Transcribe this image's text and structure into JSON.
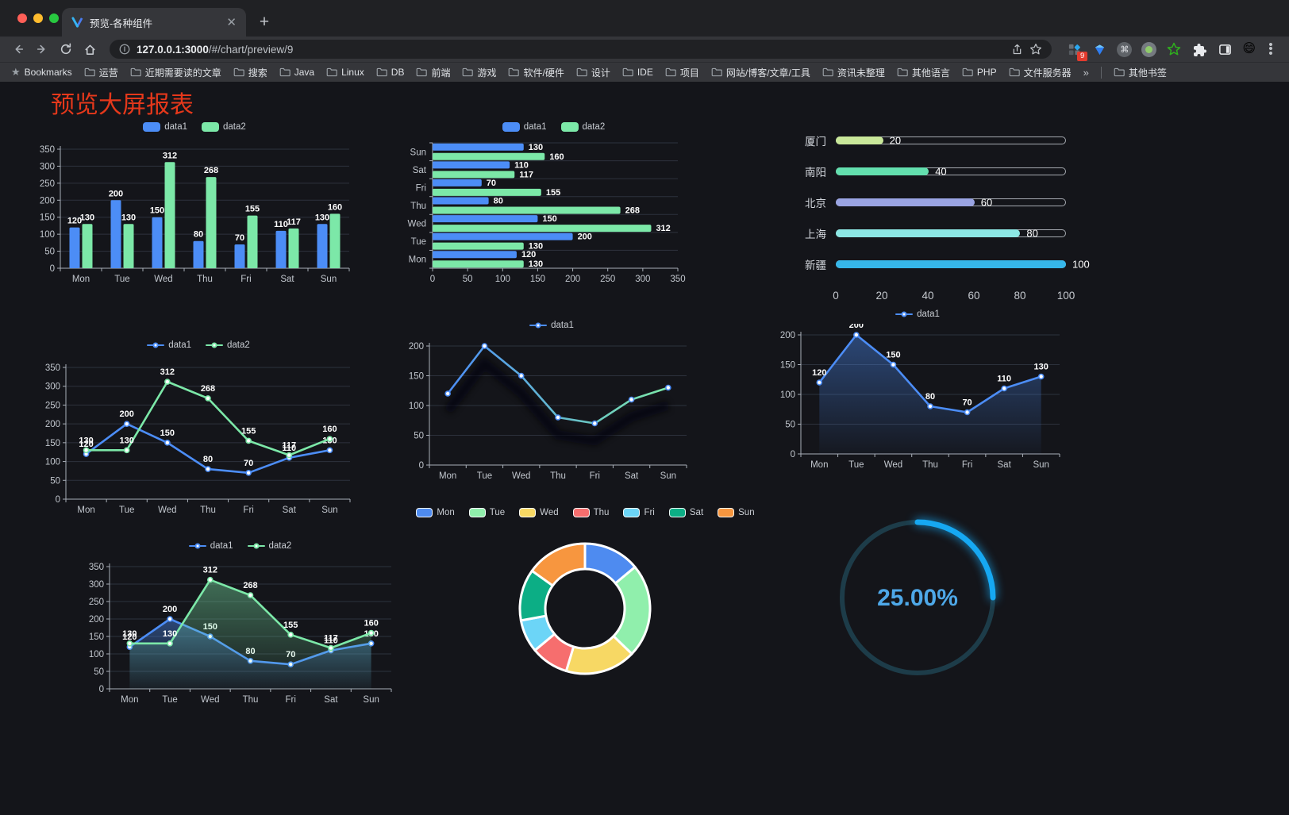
{
  "browser": {
    "tab_title": "预览-各种组件",
    "url_host": "127.0.0.1:3000",
    "url_path": "/#/chart/preview/9",
    "bookmarks_label": "Bookmarks",
    "bookmarks": [
      "运营",
      "近期需要读的文章",
      "搜索",
      "Java",
      "Linux",
      "DB",
      "前端",
      "游戏",
      "软件/硬件",
      "设计",
      "IDE",
      "项目",
      "网站/博客/文章/工具",
      "资讯未整理",
      "其他语言",
      "PHP",
      "文件服务器"
    ],
    "bookmarks_overflow": "»",
    "other_bookmarks": "其他书签",
    "extension_badge": "9",
    "avatar_emoji": "😄"
  },
  "page": {
    "title": "预览大屏报表",
    "title_color": "#E5381B"
  },
  "theme": {
    "background": "#14151A",
    "grid_line": "#2D323D",
    "axis_line": "#A9AFB8",
    "tick_text": "#C2C7CE",
    "value_text": "#FFFFFF",
    "series_blue": "#4C8DF6",
    "series_green": "#7CE8A8"
  },
  "chart_data": [
    {
      "id": "grouped-bar-chart",
      "type": "bar",
      "categories": [
        "Mon",
        "Tue",
        "Wed",
        "Thu",
        "Fri",
        "Sat",
        "Sun"
      ],
      "series": [
        {
          "name": "data1",
          "color": "#4C8DF6",
          "values": [
            120,
            200,
            150,
            80,
            70,
            110,
            130
          ]
        },
        {
          "name": "data2",
          "color": "#7CE8A8",
          "values": [
            130,
            130,
            312,
            268,
            155,
            117,
            160
          ]
        }
      ],
      "ylim": [
        0,
        350
      ],
      "yticks": [
        0,
        50,
        100,
        150,
        200,
        250,
        300,
        350
      ],
      "legend_position": "top",
      "value_labels": true,
      "grid": true
    },
    {
      "id": "horizontal-bar-chart",
      "type": "bar-horizontal",
      "categories": [
        "Mon",
        "Tue",
        "Wed",
        "Thu",
        "Fri",
        "Sat",
        "Sun"
      ],
      "series": [
        {
          "name": "data1",
          "color": "#4C8DF6",
          "values": [
            120,
            200,
            150,
            80,
            70,
            110,
            130
          ]
        },
        {
          "name": "data2",
          "color": "#7CE8A8",
          "values": [
            130,
            130,
            312,
            268,
            155,
            117,
            160
          ]
        }
      ],
      "xlim": [
        0,
        350
      ],
      "xticks": [
        0,
        50,
        100,
        150,
        200,
        250,
        300,
        350
      ],
      "legend_position": "top",
      "value_labels": true,
      "grid": true
    },
    {
      "id": "city-progress-chart",
      "type": "progress-bar",
      "max": 100,
      "xticks": [
        0,
        20,
        40,
        60,
        80,
        100
      ],
      "items": [
        {
          "label": "厦门",
          "value": 20,
          "color": "#C9E89A"
        },
        {
          "label": "南阳",
          "value": 40,
          "color": "#63DFAE"
        },
        {
          "label": "北京",
          "value": 60,
          "color": "#9AA4E3"
        },
        {
          "label": "上海",
          "value": 80,
          "color": "#8CE7E4"
        },
        {
          "label": "新疆",
          "value": 100,
          "color": "#36B7EA"
        }
      ]
    },
    {
      "id": "two-line-chart",
      "type": "line",
      "categories": [
        "Mon",
        "Tue",
        "Wed",
        "Thu",
        "Fri",
        "Sat",
        "Sun"
      ],
      "series": [
        {
          "name": "data1",
          "color": "#4C8DF6",
          "values": [
            120,
            200,
            150,
            80,
            70,
            110,
            130
          ]
        },
        {
          "name": "data2",
          "color": "#7CE8A8",
          "values": [
            130,
            130,
            312,
            268,
            155,
            117,
            160
          ]
        }
      ],
      "ylim": [
        0,
        350
      ],
      "yticks": [
        0,
        50,
        100,
        150,
        200,
        250,
        300,
        350
      ],
      "legend_position": "top",
      "value_labels": true,
      "grid": true
    },
    {
      "id": "gradient-line-chart",
      "type": "line",
      "categories": [
        "Mon",
        "Tue",
        "Wed",
        "Thu",
        "Fri",
        "Sat",
        "Sun"
      ],
      "series": [
        {
          "name": "data1",
          "color": "#4C8DF6",
          "gradient": [
            "#4C8DF6",
            "#7CE8A8"
          ],
          "values": [
            120,
            200,
            150,
            80,
            70,
            110,
            130
          ]
        }
      ],
      "ylim": [
        0,
        200
      ],
      "yticks": [
        0,
        50,
        100,
        150,
        200
      ],
      "legend_position": "top",
      "value_labels": false,
      "shadow": true,
      "grid": true
    },
    {
      "id": "area-line-chart",
      "type": "area",
      "categories": [
        "Mon",
        "Tue",
        "Wed",
        "Thu",
        "Fri",
        "Sat",
        "Sun"
      ],
      "series": [
        {
          "name": "data1",
          "color": "#4C8DF6",
          "values": [
            120,
            200,
            150,
            80,
            70,
            110,
            130
          ]
        }
      ],
      "ylim": [
        0,
        200
      ],
      "yticks": [
        0,
        50,
        100,
        150,
        200
      ],
      "legend_position": "top",
      "value_labels": true,
      "grid": true
    },
    {
      "id": "two-area-line-chart",
      "type": "area",
      "categories": [
        "Mon",
        "Tue",
        "Wed",
        "Thu",
        "Fri",
        "Sat",
        "Sun"
      ],
      "series": [
        {
          "name": "data1",
          "color": "#4C8DF6",
          "values": [
            120,
            200,
            150,
            80,
            70,
            110,
            130
          ]
        },
        {
          "name": "data2",
          "color": "#7CE8A8",
          "values": [
            130,
            130,
            312,
            268,
            155,
            117,
            160
          ]
        }
      ],
      "ylim": [
        0,
        350
      ],
      "yticks": [
        0,
        50,
        100,
        150,
        200,
        250,
        300,
        350
      ],
      "legend_position": "top",
      "value_labels": true,
      "grid": true
    },
    {
      "id": "donut-chart",
      "type": "pie",
      "categories": [
        "Mon",
        "Tue",
        "Wed",
        "Thu",
        "Fri",
        "Sat",
        "Sun"
      ],
      "values": [
        120,
        200,
        150,
        80,
        70,
        110,
        130
      ],
      "colors": [
        "#4E8BF0",
        "#90EFAC",
        "#F7D864",
        "#F66E6E",
        "#6CD5F7",
        "#0CAE85",
        "#F7963F"
      ],
      "legend_position": "top",
      "inner_radius_ratio": 0.61
    },
    {
      "id": "gauge-chart",
      "type": "gauge",
      "value": 25,
      "max": 100,
      "label": "25.00%",
      "color": "#16A8F2",
      "track_color": "#1D3C49",
      "text_color": "#4EA8E8"
    }
  ]
}
